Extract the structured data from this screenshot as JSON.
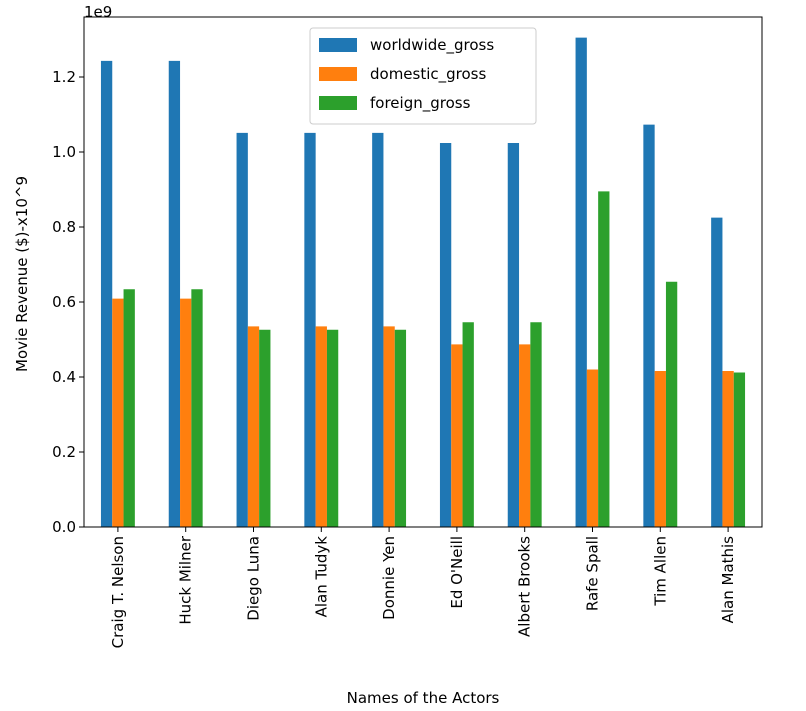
{
  "chart_data": {
    "type": "bar",
    "xlabel": "Names of the Actors",
    "ylabel": "Movie Revenue ($)-x10^9",
    "offset_text": "1e9",
    "ylim": [
      0,
      1.36
    ],
    "yticks": [
      "0.0",
      "0.2",
      "0.4",
      "0.6",
      "0.8",
      "1.0",
      "1.2"
    ],
    "grid": false,
    "legend_position": "top-center",
    "categories": [
      "Craig T. Nelson",
      "Huck Milner",
      "Diego Luna",
      "Alan Tudyk",
      "Donnie Yen",
      "Ed O'Neill",
      "Albert Brooks",
      "Rafe Spall",
      "Tim Allen",
      "Alan Mathis"
    ],
    "series": [
      {
        "name": "worldwide_gross",
        "color": "#1f77b4",
        "values": [
          1.243,
          1.243,
          1.051,
          1.051,
          1.051,
          1.024,
          1.024,
          1.305,
          1.073,
          0.825
        ]
      },
      {
        "name": "domestic_gross",
        "color": "#ff7f0e",
        "values": [
          0.609,
          0.609,
          0.535,
          0.535,
          0.535,
          0.487,
          0.487,
          0.42,
          0.416,
          0.416
        ]
      },
      {
        "name": "foreign_gross",
        "color": "#2ca02c",
        "values": [
          0.634,
          0.634,
          0.526,
          0.526,
          0.526,
          0.546,
          0.546,
          0.895,
          0.654,
          0.412
        ]
      }
    ]
  }
}
